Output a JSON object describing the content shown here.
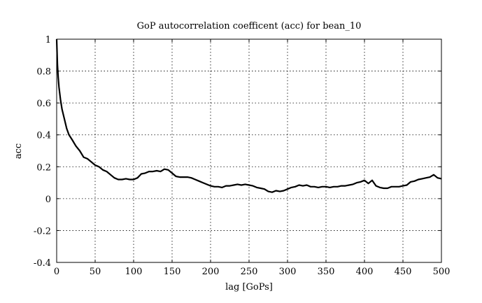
{
  "chart_data": {
    "type": "line",
    "title": "GoP autocorrelation coefficent (acc) for bean_10",
    "xlabel": "lag [GoPs]",
    "ylabel": "acc",
    "xlim": [
      0,
      500
    ],
    "ylim": [
      -0.4,
      1
    ],
    "grid": true,
    "x_ticks": [
      0,
      50,
      100,
      150,
      200,
      250,
      300,
      350,
      400,
      450,
      500
    ],
    "y_ticks": [
      -0.4,
      -0.2,
      0,
      0.2,
      0.4,
      0.6,
      0.8,
      1
    ],
    "x_tick_labels": [
      "0",
      "50",
      "100",
      "150",
      "200",
      "250",
      "300",
      "350",
      "400",
      "450",
      "500"
    ],
    "y_tick_labels": [
      "-0.4",
      "-0.2",
      "0",
      "0.2",
      "0.4",
      "0.6",
      "0.8",
      "1"
    ],
    "series": [
      {
        "x": [
          0,
          1,
          2,
          3,
          5,
          7,
          10,
          13,
          16,
          20,
          25,
          30,
          35,
          40,
          45,
          50,
          55,
          60,
          65,
          70,
          75,
          80,
          85,
          90,
          95,
          100,
          105,
          110,
          115,
          120,
          125,
          130,
          135,
          140,
          145,
          150,
          155,
          160,
          165,
          170,
          175,
          180,
          185,
          190,
          195,
          200,
          205,
          210,
          215,
          220,
          225,
          230,
          235,
          240,
          245,
          250,
          255,
          260,
          265,
          270,
          275,
          280,
          285,
          290,
          295,
          300,
          305,
          310,
          315,
          320,
          325,
          330,
          335,
          340,
          345,
          350,
          355,
          360,
          365,
          370,
          375,
          380,
          385,
          390,
          395,
          400,
          405,
          410,
          415,
          420,
          425,
          430,
          435,
          440,
          445,
          450,
          455,
          460,
          465,
          470,
          475,
          480,
          485,
          490,
          495,
          500
        ],
        "y": [
          1.0,
          0.84,
          0.76,
          0.7,
          0.62,
          0.56,
          0.5,
          0.44,
          0.4,
          0.37,
          0.33,
          0.3,
          0.26,
          0.25,
          0.23,
          0.21,
          0.2,
          0.18,
          0.17,
          0.15,
          0.13,
          0.12,
          0.12,
          0.125,
          0.12,
          0.12,
          0.13,
          0.155,
          0.16,
          0.17,
          0.17,
          0.175,
          0.17,
          0.185,
          0.18,
          0.16,
          0.14,
          0.135,
          0.135,
          0.135,
          0.13,
          0.12,
          0.11,
          0.1,
          0.09,
          0.08,
          0.075,
          0.075,
          0.07,
          0.08,
          0.08,
          0.085,
          0.09,
          0.085,
          0.09,
          0.085,
          0.08,
          0.07,
          0.065,
          0.06,
          0.045,
          0.04,
          0.05,
          0.045,
          0.05,
          0.06,
          0.07,
          0.075,
          0.085,
          0.08,
          0.085,
          0.075,
          0.075,
          0.07,
          0.075,
          0.075,
          0.07,
          0.075,
          0.075,
          0.08,
          0.08,
          0.085,
          0.09,
          0.1,
          0.105,
          0.115,
          0.095,
          0.115,
          0.08,
          0.07,
          0.065,
          0.065,
          0.075,
          0.075,
          0.075,
          0.08,
          0.085,
          0.105,
          0.11,
          0.12,
          0.125,
          0.13,
          0.135,
          0.15,
          0.13,
          0.125
        ]
      }
    ]
  }
}
